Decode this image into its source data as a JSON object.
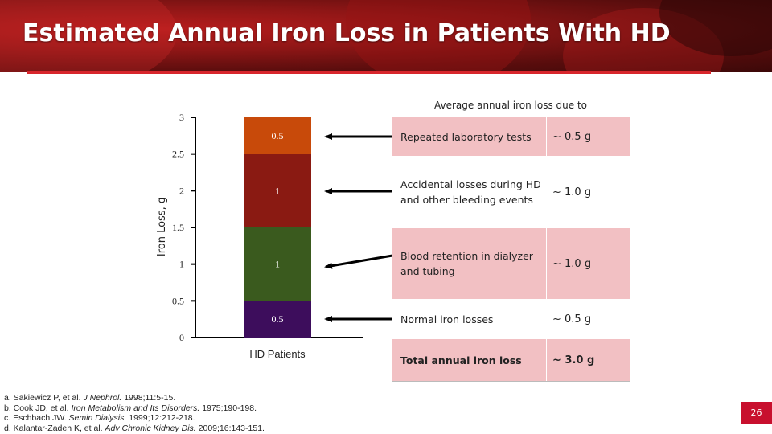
{
  "slide": {
    "title": "Estimated Annual Iron Loss in Patients With HD",
    "page_number": "26",
    "colors": {
      "accent": "#d8262c",
      "table_pink": "#f2c0c3",
      "page_badge": "#c8102e"
    }
  },
  "chart_data": {
    "type": "bar",
    "stacked": true,
    "title": "",
    "xlabel": "",
    "ylabel": "Iron Loss, g",
    "ylim": [
      0,
      3
    ],
    "yticks": [
      0,
      0.5,
      1,
      1.5,
      2,
      2.5,
      3
    ],
    "ytick_labels": [
      "0",
      "0.5",
      "1",
      "1.5",
      "2",
      "2.5",
      "3"
    ],
    "categories": [
      "HD Patients"
    ],
    "series": [
      {
        "name": "Normal iron losses",
        "values": [
          0.5
        ],
        "label": "0.5",
        "color": "#3d0d5c"
      },
      {
        "name": "Blood retention in dialyzer and tubing",
        "values": [
          1
        ],
        "label": "1",
        "color": "#3a5a1e"
      },
      {
        "name": "Accidental losses during HD and other bleeding events",
        "values": [
          1
        ],
        "label": "1",
        "color": "#8a1a12"
      },
      {
        "name": "Repeated laboratory tests",
        "values": [
          0.5
        ],
        "label": "0.5",
        "color": "#c84a0a"
      }
    ]
  },
  "table": {
    "header": "Average annual iron loss due to",
    "rows": [
      {
        "description": "Repeated laboratory tests",
        "value": "~ 0.5 g"
      },
      {
        "description": "Accidental losses during HD and other bleeding events",
        "value": "~ 1.0 g"
      },
      {
        "description": "Blood retention in dialyzer and tubing",
        "value": "~ 1.0 g"
      },
      {
        "description": "Normal iron losses",
        "value": "~ 0.5 g"
      }
    ],
    "total": {
      "description": "Total annual iron loss",
      "value": "~ 3.0 g"
    }
  },
  "references": [
    {
      "prefix": "a. Sakiewicz P, et al. ",
      "journal": "J Nephrol.",
      "rest": " 1998;11:5-15."
    },
    {
      "prefix": "b. Cook JD, et al. ",
      "journal": "Iron Metabolism and Its Disorders.",
      "rest": " 1975;190-198."
    },
    {
      "prefix": "c. Eschbach JW. ",
      "journal": "Semin Dialysis.",
      "rest": " 1999;12:212-218."
    },
    {
      "prefix": "d. Kalantar-Zadeh K, et al. ",
      "journal": "Adv Chronic Kidney Dis.",
      "rest": " 2009;16:143-151."
    }
  ]
}
